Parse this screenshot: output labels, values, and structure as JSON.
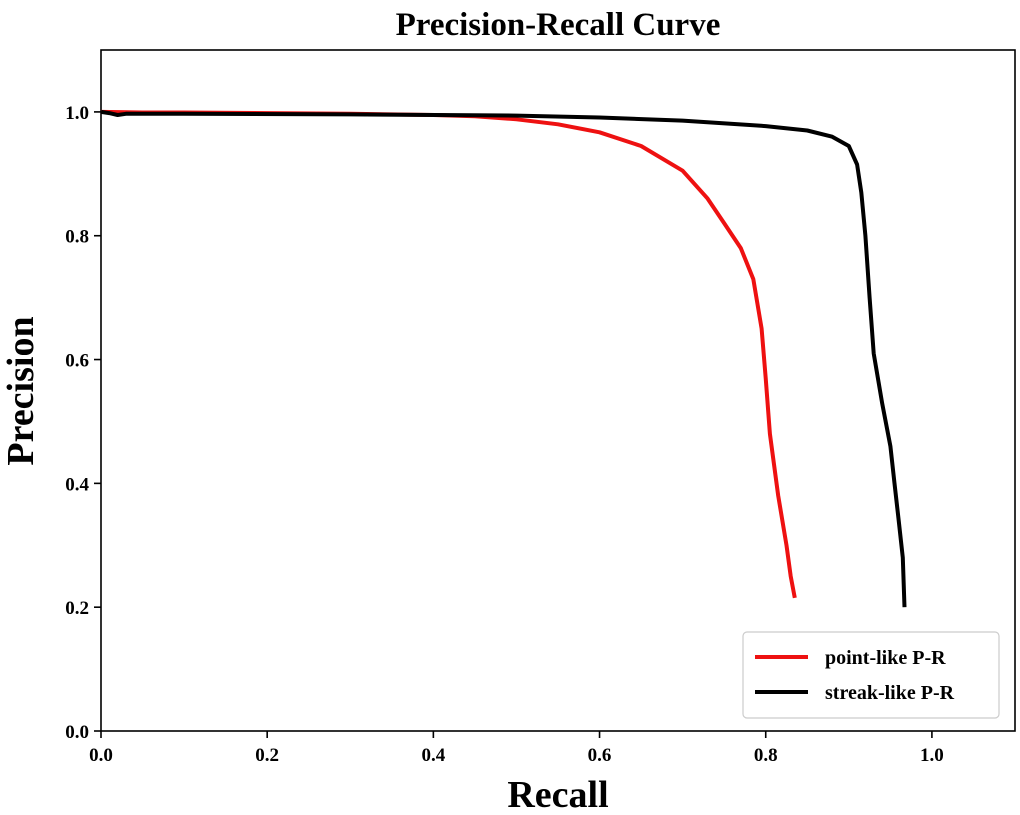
{
  "chart_data": {
    "type": "line",
    "title": "Precision-Recall Curve",
    "xlabel": "Recall",
    "ylabel": "Precision",
    "xlim": [
      0.0,
      1.1
    ],
    "ylim": [
      0.0,
      1.1
    ],
    "xticks": [
      0.0,
      0.2,
      0.4,
      0.6,
      0.8,
      1.0
    ],
    "xtick_labels": [
      "0.0",
      "0.2",
      "0.4",
      "0.6",
      "0.8",
      "1.0"
    ],
    "yticks": [
      0.0,
      0.2,
      0.4,
      0.6,
      0.8,
      1.0
    ],
    "ytick_labels": [
      "0.0",
      "0.2",
      "0.4",
      "0.6",
      "0.8",
      "1.0"
    ],
    "grid": false,
    "legend_position": "bottom-right",
    "series": [
      {
        "name": "point-like P-R",
        "color": "#ee1111",
        "points": [
          [
            0.0,
            1.0
          ],
          [
            0.05,
            0.999
          ],
          [
            0.1,
            0.999
          ],
          [
            0.2,
            0.998
          ],
          [
            0.3,
            0.997
          ],
          [
            0.4,
            0.995
          ],
          [
            0.45,
            0.993
          ],
          [
            0.5,
            0.988
          ],
          [
            0.55,
            0.98
          ],
          [
            0.6,
            0.967
          ],
          [
            0.65,
            0.945
          ],
          [
            0.7,
            0.905
          ],
          [
            0.73,
            0.86
          ],
          [
            0.75,
            0.82
          ],
          [
            0.77,
            0.78
          ],
          [
            0.785,
            0.73
          ],
          [
            0.795,
            0.65
          ],
          [
            0.8,
            0.57
          ],
          [
            0.805,
            0.48
          ],
          [
            0.815,
            0.38
          ],
          [
            0.825,
            0.3
          ],
          [
            0.83,
            0.25
          ],
          [
            0.835,
            0.215
          ]
        ]
      },
      {
        "name": "streak-like P-R",
        "color": "#000000",
        "points": [
          [
            0.0,
            1.0
          ],
          [
            0.01,
            0.998
          ],
          [
            0.02,
            0.995
          ],
          [
            0.03,
            0.997
          ],
          [
            0.1,
            0.997
          ],
          [
            0.3,
            0.996
          ],
          [
            0.5,
            0.994
          ],
          [
            0.6,
            0.991
          ],
          [
            0.7,
            0.986
          ],
          [
            0.8,
            0.977
          ],
          [
            0.85,
            0.97
          ],
          [
            0.88,
            0.96
          ],
          [
            0.9,
            0.945
          ],
          [
            0.91,
            0.915
          ],
          [
            0.915,
            0.87
          ],
          [
            0.92,
            0.8
          ],
          [
            0.925,
            0.7
          ],
          [
            0.93,
            0.61
          ],
          [
            0.94,
            0.53
          ],
          [
            0.95,
            0.46
          ],
          [
            0.955,
            0.4
          ],
          [
            0.96,
            0.34
          ],
          [
            0.965,
            0.28
          ],
          [
            0.967,
            0.2
          ]
        ]
      }
    ]
  }
}
